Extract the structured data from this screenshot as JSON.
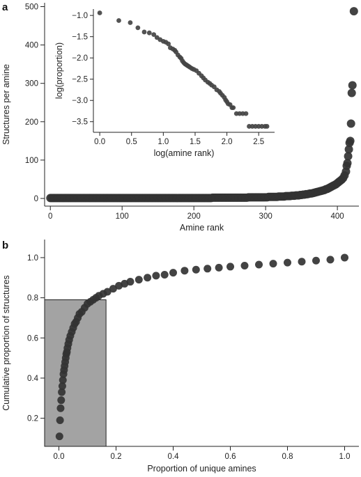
{
  "panels": {
    "a": {
      "letter": "a"
    },
    "b": {
      "letter": "b"
    }
  },
  "chart_data": [
    {
      "panel": "a",
      "type": "scatter",
      "xlabel": "Amine rank",
      "ylabel": "Structures per amine",
      "xlim": [
        -8,
        430
      ],
      "ylim": [
        -20,
        510
      ],
      "xticks": [
        0,
        100,
        200,
        300,
        400
      ],
      "yticks": [
        0,
        100,
        200,
        300,
        400,
        500
      ],
      "point_color": "#333333",
      "points": [
        [
          0,
          1
        ],
        [
          2,
          1
        ],
        [
          4,
          1
        ],
        [
          6,
          1
        ],
        [
          8,
          1
        ],
        [
          10,
          1
        ],
        [
          12,
          1
        ],
        [
          14,
          1
        ],
        [
          16,
          1
        ],
        [
          18,
          1
        ],
        [
          20,
          1
        ],
        [
          22,
          1
        ],
        [
          24,
          1
        ],
        [
          26,
          1
        ],
        [
          28,
          1
        ],
        [
          30,
          1
        ],
        [
          32,
          1
        ],
        [
          34,
          1
        ],
        [
          36,
          1
        ],
        [
          38,
          1
        ],
        [
          40,
          1
        ],
        [
          42,
          1
        ],
        [
          44,
          1
        ],
        [
          46,
          1
        ],
        [
          48,
          1
        ],
        [
          50,
          1
        ],
        [
          52,
          1
        ],
        [
          54,
          1
        ],
        [
          56,
          1
        ],
        [
          58,
          1
        ],
        [
          60,
          1
        ],
        [
          62,
          1
        ],
        [
          64,
          1
        ],
        [
          66,
          1
        ],
        [
          68,
          1
        ],
        [
          70,
          1
        ],
        [
          72,
          1
        ],
        [
          74,
          1
        ],
        [
          76,
          1
        ],
        [
          78,
          1
        ],
        [
          80,
          1
        ],
        [
          82,
          1
        ],
        [
          84,
          1
        ],
        [
          86,
          1
        ],
        [
          88,
          1
        ],
        [
          90,
          1
        ],
        [
          92,
          1
        ],
        [
          94,
          1
        ],
        [
          96,
          1
        ],
        [
          98,
          1
        ],
        [
          100,
          1
        ],
        [
          102,
          1
        ],
        [
          104,
          1
        ],
        [
          106,
          1
        ],
        [
          108,
          1
        ],
        [
          110,
          1
        ],
        [
          112,
          1
        ],
        [
          114,
          1
        ],
        [
          116,
          1
        ],
        [
          118,
          1
        ],
        [
          120,
          1
        ],
        [
          122,
          1
        ],
        [
          124,
          1
        ],
        [
          126,
          1
        ],
        [
          128,
          1
        ],
        [
          130,
          1
        ],
        [
          132,
          1
        ],
        [
          134,
          1
        ],
        [
          136,
          1
        ],
        [
          138,
          1
        ],
        [
          140,
          1
        ],
        [
          142,
          1
        ],
        [
          144,
          1
        ],
        [
          146,
          1
        ],
        [
          148,
          1
        ],
        [
          150,
          1
        ],
        [
          152,
          1
        ],
        [
          154,
          1
        ],
        [
          156,
          1
        ],
        [
          158,
          1
        ],
        [
          160,
          1
        ],
        [
          162,
          1
        ],
        [
          164,
          1
        ],
        [
          166,
          1
        ],
        [
          168,
          1
        ],
        [
          170,
          1
        ],
        [
          172,
          1
        ],
        [
          174,
          1
        ],
        [
          176,
          1
        ],
        [
          178,
          1
        ],
        [
          180,
          1
        ],
        [
          182,
          1
        ],
        [
          184,
          1
        ],
        [
          186,
          1
        ],
        [
          188,
          1
        ],
        [
          190,
          1
        ],
        [
          192,
          1
        ],
        [
          194,
          1
        ],
        [
          196,
          1
        ],
        [
          198,
          1
        ],
        [
          200,
          1
        ],
        [
          202,
          1
        ],
        [
          204,
          1
        ],
        [
          206,
          1
        ],
        [
          208,
          1
        ],
        [
          210,
          1
        ],
        [
          212,
          1
        ],
        [
          214,
          1
        ],
        [
          216,
          1
        ],
        [
          218,
          1
        ],
        [
          220,
          1
        ],
        [
          222,
          1
        ],
        [
          224,
          1
        ],
        [
          226,
          2
        ],
        [
          228,
          2
        ],
        [
          230,
          2
        ],
        [
          232,
          2
        ],
        [
          234,
          2
        ],
        [
          236,
          2
        ],
        [
          238,
          2
        ],
        [
          240,
          2
        ],
        [
          242,
          2
        ],
        [
          244,
          2
        ],
        [
          246,
          2
        ],
        [
          248,
          2
        ],
        [
          250,
          2
        ],
        [
          252,
          2
        ],
        [
          254,
          2
        ],
        [
          256,
          2
        ],
        [
          258,
          2
        ],
        [
          260,
          2
        ],
        [
          262,
          2
        ],
        [
          264,
          2
        ],
        [
          266,
          2
        ],
        [
          268,
          2
        ],
        [
          270,
          2
        ],
        [
          272,
          2
        ],
        [
          274,
          2
        ],
        [
          276,
          3
        ],
        [
          278,
          3
        ],
        [
          280,
          3
        ],
        [
          282,
          3
        ],
        [
          284,
          3
        ],
        [
          286,
          3
        ],
        [
          288,
          3
        ],
        [
          290,
          3
        ],
        [
          292,
          3
        ],
        [
          294,
          3
        ],
        [
          296,
          3
        ],
        [
          298,
          3
        ],
        [
          300,
          3
        ],
        [
          302,
          3
        ],
        [
          304,
          4
        ],
        [
          306,
          4
        ],
        [
          308,
          4
        ],
        [
          310,
          4
        ],
        [
          312,
          4
        ],
        [
          314,
          4
        ],
        [
          316,
          4
        ],
        [
          318,
          5
        ],
        [
          320,
          5
        ],
        [
          322,
          5
        ],
        [
          324,
          5
        ],
        [
          326,
          5
        ],
        [
          328,
          6
        ],
        [
          330,
          6
        ],
        [
          332,
          6
        ],
        [
          334,
          6
        ],
        [
          336,
          7
        ],
        [
          338,
          7
        ],
        [
          340,
          7
        ],
        [
          342,
          8
        ],
        [
          344,
          8
        ],
        [
          346,
          8
        ],
        [
          348,
          9
        ],
        [
          350,
          9
        ],
        [
          352,
          10
        ],
        [
          354,
          10
        ],
        [
          356,
          11
        ],
        [
          358,
          11
        ],
        [
          360,
          12
        ],
        [
          362,
          13
        ],
        [
          364,
          13
        ],
        [
          366,
          14
        ],
        [
          368,
          15
        ],
        [
          370,
          16
        ],
        [
          372,
          17
        ],
        [
          374,
          18
        ],
        [
          376,
          19
        ],
        [
          378,
          20
        ],
        [
          380,
          21
        ],
        [
          382,
          22
        ],
        [
          384,
          24
        ],
        [
          386,
          25
        ],
        [
          388,
          27
        ],
        [
          390,
          29
        ],
        [
          392,
          31
        ],
        [
          394,
          33
        ],
        [
          396,
          35
        ],
        [
          398,
          37
        ],
        [
          400,
          40
        ],
        [
          402,
          43
        ],
        [
          404,
          46
        ],
        [
          406,
          49
        ],
        [
          408,
          53
        ],
        [
          410,
          60
        ],
        [
          412,
          70
        ],
        [
          413,
          85
        ],
        [
          414,
          92
        ],
        [
          415,
          110
        ],
        [
          416,
          128
        ],
        [
          417,
          145
        ],
        [
          418,
          150
        ],
        [
          419,
          195
        ],
        [
          420,
          275
        ],
        [
          421,
          295
        ],
        [
          423,
          488
        ]
      ]
    },
    {
      "panel": "a-inset",
      "type": "scatter",
      "xlabel": "log(amine rank)",
      "ylabel": "log(proportion)",
      "xlim": [
        -0.1,
        2.75
      ],
      "ylim": [
        -3.75,
        -0.85
      ],
      "xticks": [
        0,
        0.5,
        1.0,
        1.5,
        2.0,
        2.5
      ],
      "xtick_labels": [
        "0.0",
        "0.5",
        "1.0",
        "1.5",
        "2.0",
        "2.5"
      ],
      "yticks": [
        -1.0,
        -1.5,
        -2.0,
        -2.5,
        -3.0,
        -3.5
      ],
      "ytick_labels": [
        "−1.0",
        "−1.5",
        "−2.0",
        "−2.5",
        "−3.0",
        "−3.5"
      ],
      "point_color": "#444444",
      "points": [
        [
          0.0,
          -0.94
        ],
        [
          0.3,
          -1.12
        ],
        [
          0.48,
          -1.17
        ],
        [
          0.6,
          -1.29
        ],
        [
          0.7,
          -1.39
        ],
        [
          0.78,
          -1.41
        ],
        [
          0.85,
          -1.45
        ],
        [
          0.9,
          -1.52
        ],
        [
          0.95,
          -1.57
        ],
        [
          1.0,
          -1.61
        ],
        [
          1.04,
          -1.63
        ],
        [
          1.08,
          -1.67
        ],
        [
          1.11,
          -1.76
        ],
        [
          1.15,
          -1.79
        ],
        [
          1.18,
          -1.82
        ],
        [
          1.2,
          -1.86
        ],
        [
          1.23,
          -1.93
        ],
        [
          1.26,
          -1.98
        ],
        [
          1.28,
          -2.01
        ],
        [
          1.3,
          -2.07
        ],
        [
          1.32,
          -2.11
        ],
        [
          1.34,
          -2.14
        ],
        [
          1.36,
          -2.16
        ],
        [
          1.38,
          -2.18
        ],
        [
          1.4,
          -2.2
        ],
        [
          1.42,
          -2.22
        ],
        [
          1.45,
          -2.25
        ],
        [
          1.48,
          -2.27
        ],
        [
          1.52,
          -2.3
        ],
        [
          1.56,
          -2.36
        ],
        [
          1.6,
          -2.42
        ],
        [
          1.63,
          -2.47
        ],
        [
          1.66,
          -2.52
        ],
        [
          1.7,
          -2.57
        ],
        [
          1.73,
          -2.6
        ],
        [
          1.76,
          -2.64
        ],
        [
          1.8,
          -2.68
        ],
        [
          1.84,
          -2.75
        ],
        [
          1.88,
          -2.79
        ],
        [
          1.9,
          -2.83
        ],
        [
          1.93,
          -2.88
        ],
        [
          1.96,
          -2.93
        ],
        [
          1.98,
          -2.99
        ],
        [
          2.0,
          -3.03
        ],
        [
          2.02,
          -3.08
        ],
        [
          2.05,
          -3.1
        ],
        [
          2.08,
          -3.17
        ],
        [
          2.1,
          -3.17
        ],
        [
          2.15,
          -3.31
        ],
        [
          2.2,
          -3.31
        ],
        [
          2.25,
          -3.31
        ],
        [
          2.3,
          -3.31
        ],
        [
          2.35,
          -3.61
        ],
        [
          2.4,
          -3.61
        ],
        [
          2.45,
          -3.61
        ],
        [
          2.5,
          -3.61
        ],
        [
          2.55,
          -3.61
        ],
        [
          2.6,
          -3.61
        ],
        [
          2.63,
          -3.61
        ]
      ]
    },
    {
      "panel": "b",
      "type": "scatter",
      "xlabel": "Proportion of unique amines",
      "ylabel": "Cumulative proportion of structures",
      "xlim": [
        -0.05,
        1.05
      ],
      "ylim": [
        0.06,
        1.09
      ],
      "xticks": [
        0.0,
        0.2,
        0.4,
        0.6,
        0.8,
        1.0
      ],
      "xtick_labels": [
        "0.0",
        "0.2",
        "0.4",
        "0.6",
        "0.8",
        "1.0"
      ],
      "yticks": [
        0.2,
        0.4,
        0.6,
        0.8,
        1.0
      ],
      "ytick_labels": [
        "0.2",
        "0.4",
        "0.6",
        "0.8",
        "1.0"
      ],
      "point_color": "#333333",
      "highlight_box": {
        "x": [
          -0.05,
          0.165
        ],
        "y": [
          0.06,
          0.79
        ],
        "fill": "#a3a3a3"
      },
      "points": [
        [
          0.002,
          0.11
        ],
        [
          0.004,
          0.19
        ],
        [
          0.006,
          0.25
        ],
        [
          0.008,
          0.29
        ],
        [
          0.01,
          0.33
        ],
        [
          0.012,
          0.36
        ],
        [
          0.014,
          0.39
        ],
        [
          0.016,
          0.42
        ],
        [
          0.018,
          0.44
        ],
        [
          0.02,
          0.46
        ],
        [
          0.022,
          0.48
        ],
        [
          0.024,
          0.5
        ],
        [
          0.026,
          0.52
        ],
        [
          0.028,
          0.53
        ],
        [
          0.03,
          0.55
        ],
        [
          0.033,
          0.57
        ],
        [
          0.036,
          0.59
        ],
        [
          0.04,
          0.61
        ],
        [
          0.045,
          0.63
        ],
        [
          0.05,
          0.65
        ],
        [
          0.055,
          0.67
        ],
        [
          0.06,
          0.68
        ],
        [
          0.066,
          0.7
        ],
        [
          0.072,
          0.72
        ],
        [
          0.08,
          0.73
        ],
        [
          0.09,
          0.75
        ],
        [
          0.1,
          0.77
        ],
        [
          0.11,
          0.78
        ],
        [
          0.12,
          0.79
        ],
        [
          0.13,
          0.8
        ],
        [
          0.14,
          0.81
        ],
        [
          0.155,
          0.82
        ],
        [
          0.17,
          0.83
        ],
        [
          0.19,
          0.845
        ],
        [
          0.21,
          0.86
        ],
        [
          0.23,
          0.87
        ],
        [
          0.25,
          0.88
        ],
        [
          0.28,
          0.89
        ],
        [
          0.31,
          0.9
        ],
        [
          0.34,
          0.91
        ],
        [
          0.37,
          0.915
        ],
        [
          0.4,
          0.925
        ],
        [
          0.44,
          0.935
        ],
        [
          0.48,
          0.94
        ],
        [
          0.52,
          0.945
        ],
        [
          0.56,
          0.95
        ],
        [
          0.6,
          0.955
        ],
        [
          0.65,
          0.96
        ],
        [
          0.7,
          0.965
        ],
        [
          0.75,
          0.97
        ],
        [
          0.8,
          0.975
        ],
        [
          0.85,
          0.98
        ],
        [
          0.9,
          0.985
        ],
        [
          0.95,
          0.99
        ],
        [
          1.0,
          1.0
        ]
      ]
    }
  ]
}
